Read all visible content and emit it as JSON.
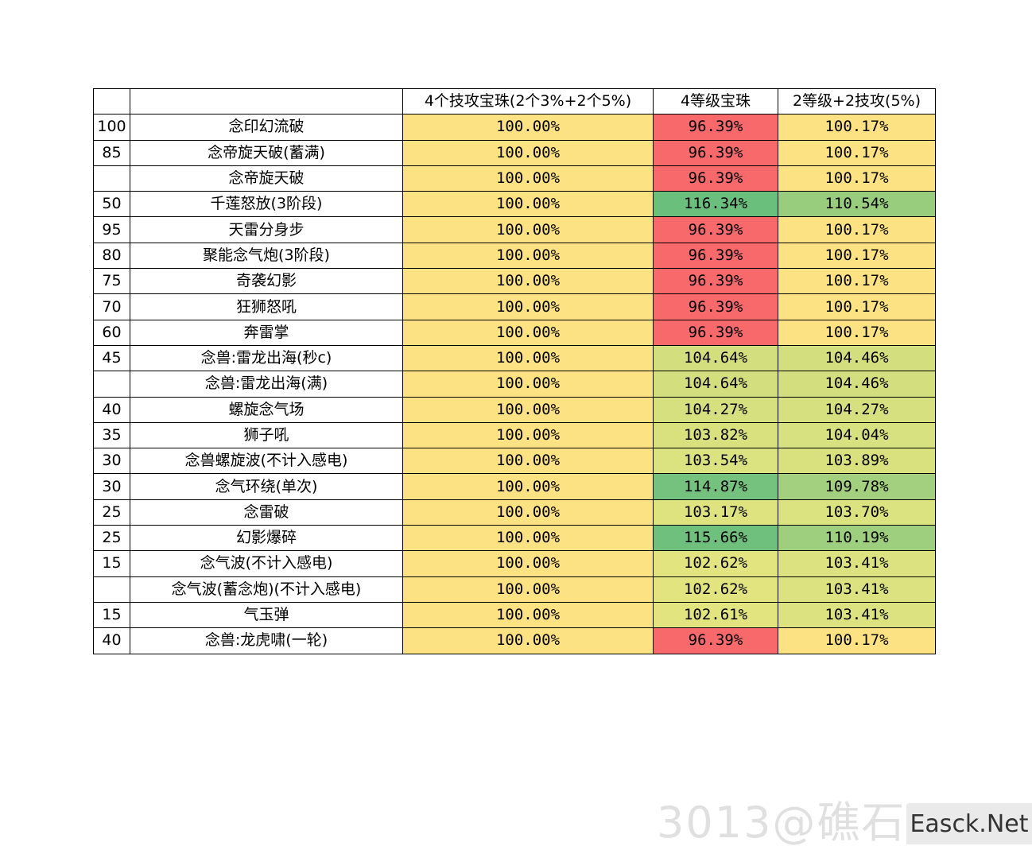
{
  "colors": {
    "yellow": "#fde283",
    "red": "#f8696b",
    "light_green": "#d6e27f",
    "mid_green": "#a2d07e",
    "green": "#69bf7d"
  },
  "table": {
    "headers": [
      "",
      "",
      "4个技攻宝珠(2个3%+2个5%)",
      "4等级宝珠",
      "2等级+2技攻(5%)"
    ],
    "rows": [
      {
        "level": "100",
        "skill": "念印幻流破",
        "a": "100.00%",
        "b": "96.39%",
        "c": "100.17%",
        "b_color": "#f8696b",
        "c_color": "#fde283"
      },
      {
        "level": "85",
        "skill": "念帝旋天破(蓄满)",
        "a": "100.00%",
        "b": "96.39%",
        "c": "100.17%",
        "b_color": "#f8696b",
        "c_color": "#fde283"
      },
      {
        "level": "",
        "skill": "念帝旋天破",
        "a": "100.00%",
        "b": "96.39%",
        "c": "100.17%",
        "b_color": "#f8696b",
        "c_color": "#fde283"
      },
      {
        "level": "50",
        "skill": "千莲怒放(3阶段)",
        "a": "100.00%",
        "b": "116.34%",
        "c": "110.54%",
        "b_color": "#6abf7d",
        "c_color": "#99cd7e"
      },
      {
        "level": "95",
        "skill": "天雷分身步",
        "a": "100.00%",
        "b": "96.39%",
        "c": "100.17%",
        "b_color": "#f8696b",
        "c_color": "#fde283"
      },
      {
        "level": "80",
        "skill": "聚能念气炮(3阶段)",
        "a": "100.00%",
        "b": "96.39%",
        "c": "100.17%",
        "b_color": "#f8696b",
        "c_color": "#fde283"
      },
      {
        "level": "75",
        "skill": "奇袭幻影",
        "a": "100.00%",
        "b": "96.39%",
        "c": "100.17%",
        "b_color": "#f8696b",
        "c_color": "#fde283"
      },
      {
        "level": "70",
        "skill": "狂狮怒吼",
        "a": "100.00%",
        "b": "96.39%",
        "c": "100.17%",
        "b_color": "#f8696b",
        "c_color": "#fde283"
      },
      {
        "level": "60",
        "skill": "奔雷掌",
        "a": "100.00%",
        "b": "96.39%",
        "c": "100.17%",
        "b_color": "#f8696b",
        "c_color": "#fde283"
      },
      {
        "level": "45",
        "skill": "念兽:雷龙出海(秒c)",
        "a": "100.00%",
        "b": "104.64%",
        "c": "104.46%",
        "b_color": "#d3df7f",
        "c_color": "#d3df7f"
      },
      {
        "level": "",
        "skill": "念兽:雷龙出海(满)",
        "a": "100.00%",
        "b": "104.64%",
        "c": "104.46%",
        "b_color": "#d3df7f",
        "c_color": "#d3df7f"
      },
      {
        "level": "40",
        "skill": "螺旋念气场",
        "a": "100.00%",
        "b": "104.27%",
        "c": "104.27%",
        "b_color": "#d6e07f",
        "c_color": "#d6e07f"
      },
      {
        "level": "35",
        "skill": "狮子吼",
        "a": "100.00%",
        "b": "103.82%",
        "c": "104.04%",
        "b_color": "#d9e17f",
        "c_color": "#d8e17f"
      },
      {
        "level": "30",
        "skill": "念兽螺旋波(不计入感电)",
        "a": "100.00%",
        "b": "103.54%",
        "c": "103.89%",
        "b_color": "#dbe280",
        "c_color": "#d9e17f"
      },
      {
        "level": "30",
        "skill": "念气环绕(单次)",
        "a": "100.00%",
        "b": "114.87%",
        "c": "109.78%",
        "b_color": "#74c27d",
        "c_color": "#a2d07e"
      },
      {
        "level": "25",
        "skill": "念雷破",
        "a": "100.00%",
        "b": "103.17%",
        "c": "103.70%",
        "b_color": "#dee380",
        "c_color": "#dbe280"
      },
      {
        "level": "25",
        "skill": "幻影爆碎",
        "a": "100.00%",
        "b": "115.66%",
        "c": "110.19%",
        "b_color": "#6fc07d",
        "c_color": "#9ecf7e"
      },
      {
        "level": "15",
        "skill": "念气波(不计入感电)",
        "a": "100.00%",
        "b": "102.62%",
        "c": "103.41%",
        "b_color": "#e2e480",
        "c_color": "#dde280"
      },
      {
        "level": "",
        "skill": "念气波(蓄念炮)(不计入感电)",
        "a": "100.00%",
        "b": "102.62%",
        "c": "103.41%",
        "b_color": "#e2e480",
        "c_color": "#dde280"
      },
      {
        "level": "15",
        "skill": "气玉弹",
        "a": "100.00%",
        "b": "102.61%",
        "c": "103.41%",
        "b_color": "#e2e480",
        "c_color": "#dde280"
      },
      {
        "level": "40",
        "skill": "念兽:龙虎啸(一轮)",
        "a": "100.00%",
        "b": "96.39%",
        "c": "100.17%",
        "b_color": "#f8696b",
        "c_color": "#fde283"
      }
    ]
  },
  "watermark": {
    "text": "3013@礁石",
    "logo": "Easck.Net"
  }
}
